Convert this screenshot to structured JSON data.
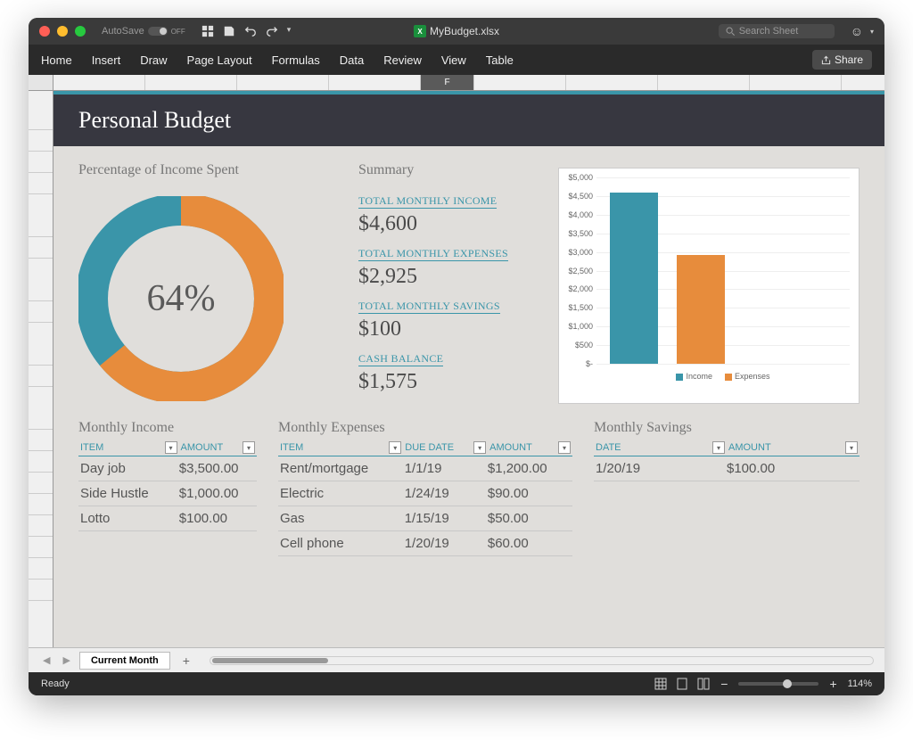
{
  "titlebar": {
    "autosave_label": "AutoSave",
    "autosave_state": "OFF",
    "filename": "MyBudget.xlsx",
    "search_placeholder": "Search Sheet"
  },
  "ribbon": {
    "tabs": [
      "Home",
      "Insert",
      "Draw",
      "Page Layout",
      "Formulas",
      "Data",
      "Review",
      "View",
      "Table"
    ],
    "share": "Share"
  },
  "active_column": "F",
  "doc": {
    "title": "Personal Budget",
    "pct_heading": "Percentage of Income Spent",
    "summary_heading": "Summary",
    "summary": {
      "income_label": "TOTAL MONTHLY INCOME",
      "income_value": "$4,600",
      "expenses_label": "TOTAL MONTHLY EXPENSES",
      "expenses_value": "$2,925",
      "savings_label": "TOTAL MONTHLY SAVINGS",
      "savings_value": "$100",
      "cash_label": "CASH BALANCE",
      "cash_value": "$1,575"
    },
    "donut": {
      "type": "donut",
      "percentage": 64,
      "center_text": "64%",
      "spent_color": "#e78c3c",
      "remaining_color": "#3a95a9",
      "radius": 100,
      "thickness": 36,
      "circumference": 628.3,
      "spent_dash": "402.1 628.3",
      "background_color": "#e0dedb"
    },
    "barchart": {
      "type": "bar",
      "ymax": 5000,
      "ytick_step": 500,
      "yticks": [
        "$5,000",
        "$4,500",
        "$4,000",
        "$3,500",
        "$3,000",
        "$2,500",
        "$2,000",
        "$1,500",
        "$1,000",
        "$500",
        "$-"
      ],
      "bars": [
        {
          "label": "Income",
          "value": 4600,
          "color": "#3a95a9",
          "height_pct": 92
        },
        {
          "label": "Expenses",
          "value": 2925,
          "color": "#e78c3c",
          "height_pct": 58.5
        }
      ],
      "background_color": "#ffffff",
      "grid_color": "#eeeeee"
    },
    "income_table": {
      "heading": "Monthly Income",
      "columns": [
        "ITEM",
        "AMOUNT"
      ],
      "rows": [
        {
          "item": "Day job",
          "amount": "$3,500.00"
        },
        {
          "item": "Side Hustle",
          "amount": "$1,000.00"
        },
        {
          "item": "Lotto",
          "amount": "$100.00"
        }
      ]
    },
    "expenses_table": {
      "heading": "Monthly Expenses",
      "columns": [
        "ITEM",
        "DUE DATE",
        "AMOUNT"
      ],
      "rows": [
        {
          "item": "Rent/mortgage",
          "due": "1/1/19",
          "amount": "$1,200.00"
        },
        {
          "item": "Electric",
          "due": "1/24/19",
          "amount": "$90.00"
        },
        {
          "item": "Gas",
          "due": "1/15/19",
          "amount": "$50.00"
        },
        {
          "item": "Cell phone",
          "due": "1/20/19",
          "amount": "$60.00"
        }
      ]
    },
    "savings_table": {
      "heading": "Monthly Savings",
      "columns": [
        "DATE",
        "AMOUNT"
      ],
      "rows": [
        {
          "date": "1/20/19",
          "amount": "$100.00"
        }
      ]
    }
  },
  "footer": {
    "sheet_tab": "Current Month",
    "status": "Ready",
    "zoom": "114%"
  },
  "colors": {
    "teal": "#3a95a9",
    "orange": "#e78c3c",
    "sheet_bg": "#e0dedb",
    "title_band": "#373740"
  }
}
